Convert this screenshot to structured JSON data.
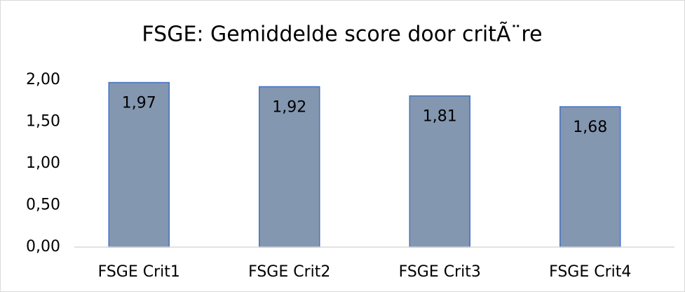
{
  "chart_data": {
    "type": "bar",
    "title": "FSGE: Gemiddelde score door critÃ¨re",
    "categories": [
      "FSGE Crit1",
      "FSGE Crit2",
      "FSGE Crit3",
      "FSGE Crit4"
    ],
    "values": [
      1.97,
      1.92,
      1.81,
      1.68
    ],
    "value_labels": [
      "1,97",
      "1,92",
      "1,81",
      "1,68"
    ],
    "color": "#8497b0",
    "edge_color": "#4472c4",
    "ylim": [
      0,
      2
    ],
    "yticks": [
      {
        "value": 0,
        "label": "0,00"
      },
      {
        "value": 0.5,
        "label": "0,50"
      },
      {
        "value": 1,
        "label": "1,00"
      },
      {
        "value": 1.5,
        "label": "1,50"
      },
      {
        "value": 2,
        "label": "2,00"
      }
    ],
    "grid": false
  }
}
